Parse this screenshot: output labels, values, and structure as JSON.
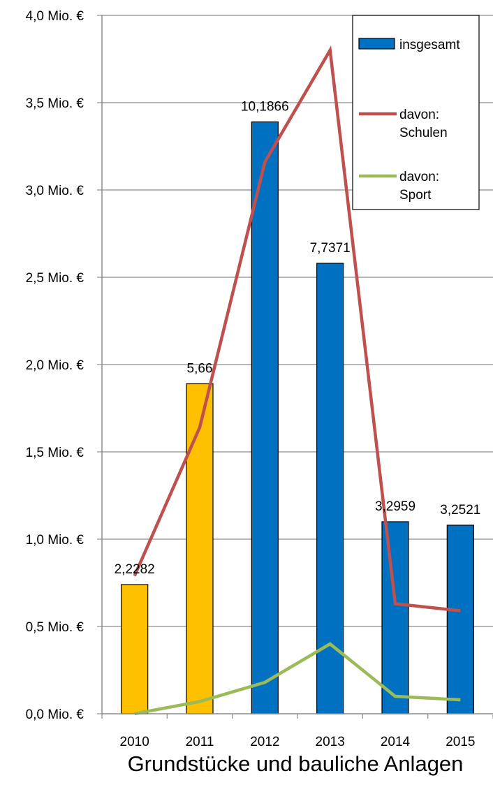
{
  "chart_data": {
    "type": "bar",
    "xlabel": "Grundstücke und bauliche Anlagen",
    "categories": [
      "2010",
      "2011",
      "2012",
      "2013",
      "2014",
      "2015"
    ],
    "ylim": [
      0,
      4.0
    ],
    "yticks": [
      "0,0 Mio. €",
      "0,5 Mio. €",
      "1,0 Mio. €",
      "1,5 Mio. €",
      "2,0 Mio. €",
      "2,5 Mio. €",
      "3,0 Mio. €",
      "3,5 Mio. €",
      "4,0 Mio. €"
    ],
    "grid": true,
    "legend_position": "top-right",
    "series": [
      {
        "name": "insgesamt",
        "kind": "bar",
        "values": [
          0.74,
          1.89,
          3.39,
          2.58,
          1.1,
          1.08
        ],
        "colors": [
          "#FFC000",
          "#FFC000",
          "#0070C0",
          "#0070C0",
          "#0070C0",
          "#0070C0"
        ],
        "data_labels": [
          "2,2282",
          "5,66",
          "10,1866",
          "7,7371",
          "3,2959",
          "3,2521"
        ]
      },
      {
        "name": "davon: Schulen",
        "kind": "line",
        "color": "#C0504D",
        "values": [
          0.79,
          1.64,
          3.16,
          3.8,
          0.63,
          0.59
        ]
      },
      {
        "name": "davon: Sport",
        "kind": "line",
        "color": "#9BBB59",
        "values": [
          0.0,
          0.07,
          0.18,
          0.4,
          0.1,
          0.08
        ]
      }
    ],
    "legend": [
      {
        "lines": [
          "insgesamt"
        ],
        "symbol": "bar",
        "color": "#0070C0"
      },
      {
        "lines": [
          "davon:",
          "Schulen"
        ],
        "symbol": "line",
        "color": "#C0504D"
      },
      {
        "lines": [
          "davon:",
          "Sport"
        ],
        "symbol": "line",
        "color": "#9BBB59"
      }
    ]
  }
}
